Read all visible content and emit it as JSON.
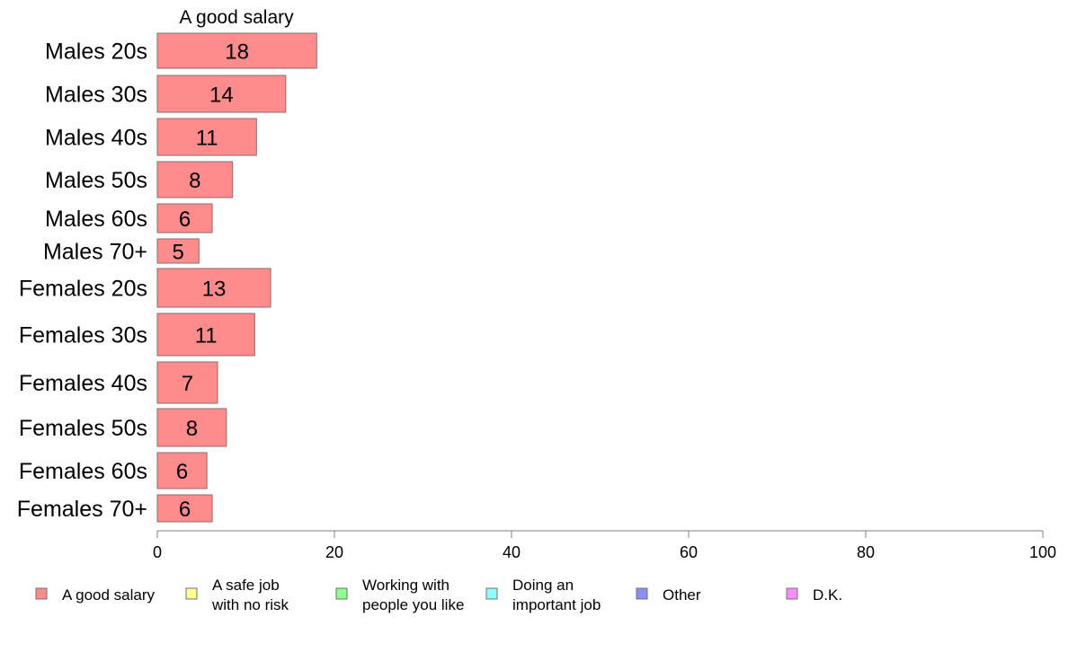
{
  "chart_data": {
    "type": "bar",
    "orientation": "horizontal",
    "title": "A good salary",
    "categories": [
      "Males 20s",
      "Males 30s",
      "Males 40s",
      "Males 50s",
      "Males 60s",
      "Males 70+",
      "Females 20s",
      "Females 30s",
      "Females 40s",
      "Females 50s",
      "Females 60s",
      "Females 70+"
    ],
    "values": [
      18,
      14.5,
      11.2,
      8.5,
      6.2,
      4.7,
      12.8,
      11,
      6.8,
      7.8,
      5.6,
      6.2
    ],
    "value_labels": [
      "18",
      "14",
      "11",
      "8",
      "6",
      "5",
      "13",
      "11",
      "7",
      "8",
      "6",
      "6"
    ],
    "xlim": [
      0,
      100
    ],
    "xticks": [
      0,
      20,
      40,
      60,
      80,
      100
    ],
    "xtick_labels": [
      "0",
      "20",
      "40",
      "60",
      "80",
      "100"
    ],
    "xlabel": "",
    "ylabel": "",
    "grid": false,
    "legend_position": "bottom",
    "bar_color": "#ff8c8c",
    "bar_stroke": "#8a6b6b",
    "legend": [
      {
        "lines": [
          "A good salary"
        ],
        "color": "#ff8c8c"
      },
      {
        "lines": [
          "A safe job",
          "with no risk"
        ],
        "color": "#ffff8c"
      },
      {
        "lines": [
          "Working with",
          "people you like"
        ],
        "color": "#8cff8c"
      },
      {
        "lines": [
          "Doing an",
          "important job"
        ],
        "color": "#8cffff"
      },
      {
        "lines": [
          "Other"
        ],
        "color": "#8c8cff"
      },
      {
        "lines": [
          "D.K."
        ],
        "color": "#ff8cff"
      }
    ]
  }
}
